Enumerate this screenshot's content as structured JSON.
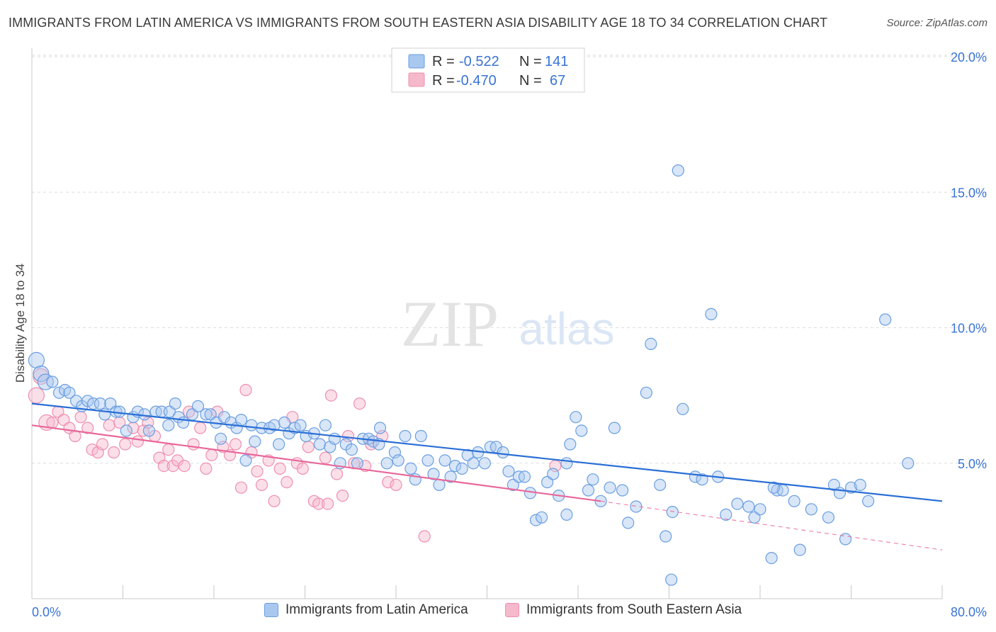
{
  "header": {
    "title": "IMMIGRANTS FROM LATIN AMERICA VS IMMIGRANTS FROM SOUTH EASTERN ASIA DISABILITY AGE 18 TO 34 CORRELATION CHART",
    "source": "Source: ZipAtlas.com"
  },
  "watermark": {
    "zip": "ZIP",
    "atlas": "atlas"
  },
  "legend_top": {
    "rows": [
      {
        "r_label": "R =",
        "r_value": "-0.522",
        "n_label": "N =",
        "n_value": "141"
      },
      {
        "r_label": "R =",
        "r_value": "-0.470",
        "n_label": "N =",
        "n_value": "67"
      }
    ]
  },
  "colors": {
    "blue_fill": "#a9c8f0",
    "blue_stroke": "#6a9ee0",
    "blue_line": "#2a6fd6",
    "pink_fill": "#f6b8cb",
    "pink_stroke": "#ee8fae",
    "pink_line": "#e8679a",
    "accent_text": "#3a74d4",
    "grid": "#dddddd"
  },
  "chart_data": {
    "type": "scatter",
    "title": "IMMIGRANTS FROM LATIN AMERICA VS IMMIGRANTS FROM SOUTH EASTERN ASIA DISABILITY AGE 18 TO 34 CORRELATION CHART",
    "xlabel": "",
    "ylabel": "Disability Age 18 to 34",
    "xlim": [
      0,
      80
    ],
    "ylim": [
      0,
      20
    ],
    "x_tick_labels": [
      "0.0%",
      "80.0%"
    ],
    "y_ticks": [
      5,
      10,
      15,
      20
    ],
    "y_tick_labels": [
      "5.0%",
      "10.0%",
      "15.0%",
      "20.0%"
    ],
    "grid": "horizontal dashed",
    "legend_placement": "top-center",
    "series": [
      {
        "name": "Immigrants from Latin America",
        "r": -0.522,
        "n": 141,
        "trend": {
          "x": [
            0,
            80
          ],
          "y": [
            7.2,
            3.6
          ]
        },
        "points": [
          [
            0.4,
            8.8
          ],
          [
            0.8,
            8.3
          ],
          [
            1.2,
            8.0
          ],
          [
            1.8,
            8.0
          ],
          [
            2.4,
            7.6
          ],
          [
            2.9,
            7.7
          ],
          [
            3.3,
            7.6
          ],
          [
            3.9,
            7.3
          ],
          [
            4.4,
            7.1
          ],
          [
            4.9,
            7.3
          ],
          [
            5.4,
            7.2
          ],
          [
            6.0,
            7.2
          ],
          [
            6.4,
            6.8
          ],
          [
            6.9,
            7.2
          ],
          [
            7.4,
            6.9
          ],
          [
            7.7,
            6.9
          ],
          [
            8.3,
            6.2
          ],
          [
            8.9,
            6.7
          ],
          [
            9.3,
            6.9
          ],
          [
            9.9,
            6.8
          ],
          [
            10.3,
            6.2
          ],
          [
            10.9,
            6.9
          ],
          [
            11.4,
            6.9
          ],
          [
            12.1,
            6.9
          ],
          [
            12.6,
            7.2
          ],
          [
            12.9,
            6.7
          ],
          [
            13.3,
            6.5
          ],
          [
            14.1,
            6.8
          ],
          [
            14.6,
            7.1
          ],
          [
            15.3,
            6.8
          ],
          [
            15.7,
            6.8
          ],
          [
            16.2,
            6.5
          ],
          [
            16.6,
            5.9
          ],
          [
            16.9,
            6.7
          ],
          [
            17.5,
            6.5
          ],
          [
            18.0,
            6.3
          ],
          [
            18.4,
            6.6
          ],
          [
            18.8,
            5.1
          ],
          [
            19.3,
            6.4
          ],
          [
            19.6,
            5.8
          ],
          [
            20.2,
            6.3
          ],
          [
            20.9,
            6.3
          ],
          [
            21.3,
            6.4
          ],
          [
            21.7,
            5.7
          ],
          [
            22.2,
            6.5
          ],
          [
            22.6,
            6.1
          ],
          [
            23.1,
            6.3
          ],
          [
            23.6,
            6.4
          ],
          [
            24.1,
            6.0
          ],
          [
            24.8,
            6.1
          ],
          [
            25.3,
            5.7
          ],
          [
            25.8,
            6.4
          ],
          [
            26.2,
            5.6
          ],
          [
            26.6,
            5.9
          ],
          [
            27.1,
            5.0
          ],
          [
            27.6,
            5.7
          ],
          [
            28.1,
            5.5
          ],
          [
            28.6,
            5.0
          ],
          [
            29.1,
            5.9
          ],
          [
            29.6,
            5.9
          ],
          [
            30.0,
            5.8
          ],
          [
            30.6,
            6.3
          ],
          [
            31.2,
            5.0
          ],
          [
            31.9,
            5.4
          ],
          [
            32.2,
            5.1
          ],
          [
            32.8,
            6.0
          ],
          [
            33.3,
            4.8
          ],
          [
            33.7,
            4.4
          ],
          [
            34.2,
            6.0
          ],
          [
            34.8,
            5.1
          ],
          [
            35.3,
            4.6
          ],
          [
            35.8,
            4.2
          ],
          [
            36.3,
            5.1
          ],
          [
            36.8,
            4.5
          ],
          [
            37.2,
            4.9
          ],
          [
            37.8,
            4.8
          ],
          [
            38.3,
            5.3
          ],
          [
            38.8,
            5.0
          ],
          [
            39.2,
            5.4
          ],
          [
            39.8,
            5.0
          ],
          [
            40.3,
            5.6
          ],
          [
            40.8,
            5.6
          ],
          [
            41.4,
            5.4
          ],
          [
            41.9,
            4.7
          ],
          [
            42.3,
            4.2
          ],
          [
            42.8,
            4.5
          ],
          [
            43.3,
            4.5
          ],
          [
            43.8,
            3.9
          ],
          [
            44.3,
            2.9
          ],
          [
            44.8,
            3.0
          ],
          [
            45.3,
            4.3
          ],
          [
            45.8,
            4.6
          ],
          [
            46.3,
            3.8
          ],
          [
            47.0,
            5.0
          ],
          [
            47.3,
            5.7
          ],
          [
            47.8,
            6.7
          ],
          [
            48.3,
            6.2
          ],
          [
            48.9,
            4.0
          ],
          [
            49.3,
            4.4
          ],
          [
            50.0,
            3.6
          ],
          [
            50.8,
            4.1
          ],
          [
            51.2,
            6.3
          ],
          [
            51.9,
            4.0
          ],
          [
            52.4,
            2.8
          ],
          [
            53.1,
            3.4
          ],
          [
            54.0,
            7.6
          ],
          [
            54.4,
            9.4
          ],
          [
            55.2,
            4.2
          ],
          [
            56.2,
            0.7
          ],
          [
            56.8,
            15.8
          ],
          [
            57.2,
            7.0
          ],
          [
            58.3,
            4.5
          ],
          [
            58.9,
            4.4
          ],
          [
            59.7,
            10.5
          ],
          [
            60.3,
            4.5
          ],
          [
            61.0,
            3.1
          ],
          [
            62.0,
            3.5
          ],
          [
            63.0,
            3.4
          ],
          [
            63.5,
            3.0
          ],
          [
            64.0,
            3.3
          ],
          [
            65.0,
            1.5
          ],
          [
            65.5,
            4.0
          ],
          [
            66.0,
            4.0
          ],
          [
            67.0,
            3.6
          ],
          [
            67.5,
            1.8
          ],
          [
            68.5,
            3.3
          ],
          [
            70.0,
            3.0
          ],
          [
            70.5,
            4.2
          ],
          [
            71.0,
            3.9
          ],
          [
            71.5,
            2.2
          ],
          [
            72.0,
            4.1
          ],
          [
            72.8,
            4.2
          ],
          [
            73.5,
            3.6
          ],
          [
            75.0,
            10.3
          ],
          [
            77.0,
            5.0
          ],
          [
            56.3,
            3.2
          ],
          [
            55.7,
            2.3
          ],
          [
            30.5,
            5.7
          ],
          [
            12.0,
            6.4
          ],
          [
            47.0,
            3.1
          ],
          [
            65.2,
            4.1
          ]
        ]
      },
      {
        "name": "Immigrants from South Eastern Asia",
        "r": -0.47,
        "n": 67,
        "trend": {
          "x": [
            0,
            50
          ],
          "y": [
            6.4,
            3.6
          ]
        },
        "dashed_extension": {
          "x": [
            50,
            80
          ],
          "y": [
            3.6,
            1.8
          ]
        },
        "points": [
          [
            0.4,
            7.5
          ],
          [
            0.8,
            8.2
          ],
          [
            1.3,
            6.5
          ],
          [
            1.8,
            6.5
          ],
          [
            2.3,
            6.9
          ],
          [
            2.8,
            6.6
          ],
          [
            3.3,
            6.3
          ],
          [
            3.8,
            6.0
          ],
          [
            4.3,
            6.7
          ],
          [
            4.9,
            6.3
          ],
          [
            5.3,
            5.5
          ],
          [
            5.8,
            5.4
          ],
          [
            6.2,
            5.7
          ],
          [
            6.8,
            6.4
          ],
          [
            7.2,
            5.4
          ],
          [
            7.7,
            6.5
          ],
          [
            8.2,
            5.7
          ],
          [
            8.9,
            6.3
          ],
          [
            9.3,
            5.8
          ],
          [
            9.8,
            6.2
          ],
          [
            10.2,
            6.5
          ],
          [
            10.8,
            6.0
          ],
          [
            11.2,
            5.2
          ],
          [
            11.6,
            4.9
          ],
          [
            12.0,
            5.5
          ],
          [
            12.4,
            4.9
          ],
          [
            12.8,
            5.1
          ],
          [
            13.4,
            4.9
          ],
          [
            13.8,
            6.9
          ],
          [
            14.2,
            5.7
          ],
          [
            14.8,
            6.3
          ],
          [
            15.3,
            4.8
          ],
          [
            15.8,
            5.3
          ],
          [
            16.3,
            6.9
          ],
          [
            16.8,
            5.6
          ],
          [
            17.4,
            5.3
          ],
          [
            17.9,
            5.7
          ],
          [
            18.4,
            4.1
          ],
          [
            18.8,
            7.7
          ],
          [
            19.3,
            5.4
          ],
          [
            19.8,
            4.7
          ],
          [
            20.2,
            4.2
          ],
          [
            20.8,
            5.1
          ],
          [
            21.3,
            3.6
          ],
          [
            21.8,
            4.8
          ],
          [
            22.4,
            4.3
          ],
          [
            22.9,
            6.7
          ],
          [
            23.3,
            5.0
          ],
          [
            23.8,
            4.8
          ],
          [
            24.3,
            5.6
          ],
          [
            24.8,
            3.6
          ],
          [
            25.2,
            3.5
          ],
          [
            25.8,
            5.2
          ],
          [
            26.3,
            7.5
          ],
          [
            26.8,
            4.6
          ],
          [
            27.3,
            3.8
          ],
          [
            27.8,
            6.0
          ],
          [
            28.3,
            5.0
          ],
          [
            28.8,
            7.2
          ],
          [
            29.3,
            4.9
          ],
          [
            29.8,
            5.7
          ],
          [
            30.8,
            6.0
          ],
          [
            31.3,
            4.3
          ],
          [
            32.0,
            4.2
          ],
          [
            34.5,
            2.3
          ],
          [
            46.0,
            4.9
          ],
          [
            26.0,
            3.5
          ]
        ]
      }
    ]
  },
  "legend_bottom": {
    "items": [
      {
        "label": "Immigrants from Latin America"
      },
      {
        "label": "Immigrants from South Eastern Asia"
      }
    ]
  }
}
